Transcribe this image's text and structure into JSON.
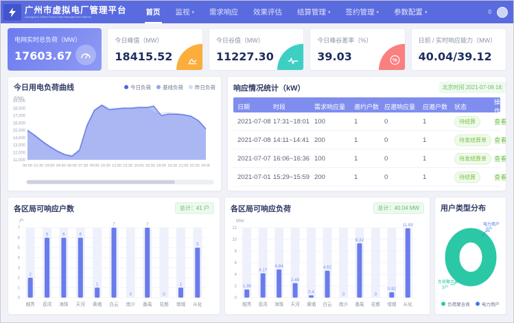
{
  "header": {
    "logo_title": "广州市虚拟电厂管理平台",
    "logo_subtitle": "Guangzhou Virtual Power Plant Management Platform",
    "nav": [
      {
        "label": "首页",
        "active": true,
        "dropdown": false
      },
      {
        "label": "监视",
        "active": false,
        "dropdown": true
      },
      {
        "label": "需求响应",
        "active": false,
        "dropdown": false
      },
      {
        "label": "效果评估",
        "active": false,
        "dropdown": false
      },
      {
        "label": "结算管理",
        "active": false,
        "dropdown": true
      },
      {
        "label": "签约管理",
        "active": false,
        "dropdown": true
      },
      {
        "label": "参数配置",
        "active": false,
        "dropdown": true
      }
    ],
    "notification_count": "0"
  },
  "kpi_cards": [
    {
      "label": "电网实时总负荷（MW）",
      "value": "17603.67",
      "icon": "gauge-icon",
      "style": "gradient",
      "icon_color": ""
    },
    {
      "label": "今日峰值（MW）",
      "value": "18415.52",
      "icon": "curve-icon",
      "style": "plain",
      "icon_color": "#fbae3c"
    },
    {
      "label": "今日谷值（MW）",
      "value": "11227.30",
      "icon": "pulse-icon",
      "style": "plain",
      "icon_color": "#3dcfc4"
    },
    {
      "label": "今日峰谷差率（%）",
      "value": "39.03",
      "icon": "percent-icon",
      "style": "plain",
      "icon_color": "#fb7f7f"
    },
    {
      "label": "日前 / 实时响应能力（MW）",
      "value": "40.04/39.12",
      "icon": "",
      "style": "plain",
      "icon_color": ""
    }
  ],
  "load_chart": {
    "type": "area",
    "title": "今日用电负荷曲线",
    "y_unit": "(MW)",
    "ylim": [
      11000,
      19000
    ],
    "y_ticks": [
      "19,000",
      "18,000",
      "17,000",
      "16,000",
      "15,000",
      "14,000",
      "13,000",
      "12,000",
      "11,000"
    ],
    "x_labels": [
      "00:00",
      "01:30",
      "03:00",
      "04:30",
      "06:00",
      "07:30",
      "09:00",
      "10:30",
      "12:00",
      "13:30",
      "15:00",
      "16:30",
      "18:00",
      "19:30",
      "21:00",
      "22:30",
      "24:00"
    ],
    "legend": [
      {
        "label": "今日负荷",
        "color": "#4e63e0"
      },
      {
        "label": "基线负荷",
        "color": "#93a3f1"
      },
      {
        "label": "昨日负荷",
        "color": "#d2dbfa"
      }
    ],
    "series": [
      {
        "name": "昨日负荷",
        "values": [
          15100,
          14400,
          13600,
          12900,
          12250,
          11800,
          11600,
          12500,
          15900,
          17800,
          18500,
          18000,
          18000,
          18100,
          18100,
          18200,
          18200,
          17400,
          17300,
          17400,
          17300,
          17200,
          17000,
          16400,
          15300
        ]
      },
      {
        "name": "基线负荷",
        "values": [
          14900,
          14200,
          13400,
          12700,
          12100,
          11650,
          11450,
          12200,
          15500,
          17600,
          18300,
          17750,
          17850,
          17950,
          17950,
          18050,
          18050,
          18200,
          16950,
          17150,
          17150,
          17050,
          16850,
          16250,
          15150
        ]
      },
      {
        "name": "今日负荷",
        "values": [
          15000,
          14300,
          13500,
          12800,
          12200,
          11700,
          11500,
          12300,
          15600,
          17700,
          18400,
          17800,
          17900,
          18000,
          18000,
          18100,
          18100,
          18300,
          17000,
          17200,
          17200,
          17100,
          16900,
          16300,
          15200
        ]
      }
    ]
  },
  "response_table": {
    "title": "响应情况统计（kW）",
    "time_badge": "北京时间 2021-07-08 18:",
    "headers": [
      "日期",
      "时段",
      "需求响应量",
      "邀约户数",
      "应邀响应量",
      "应邀户数",
      "状态",
      "操作"
    ],
    "action_label": "查看",
    "rows": [
      {
        "date": "2021-07-08",
        "period": "17:31~18:01",
        "demand": "100",
        "invited": "1",
        "resp_amount": "0",
        "resp_users": "1",
        "status": "待结算"
      },
      {
        "date": "2021-07-08",
        "period": "14:11~14:41",
        "demand": "200",
        "invited": "1",
        "resp_amount": "0",
        "resp_users": "1",
        "status": "待发结算单"
      },
      {
        "date": "2021-07-07",
        "period": "16:06~16:36",
        "demand": "100",
        "invited": "1",
        "resp_amount": "0",
        "resp_users": "1",
        "status": "待发结算单"
      },
      {
        "date": "2021-07-01",
        "period": "15:29~15:59",
        "demand": "200",
        "invited": "1",
        "resp_amount": "0",
        "resp_users": "1",
        "status": "待结算"
      }
    ]
  },
  "district_users_chart": {
    "type": "bar",
    "title": "各区局可响应户数",
    "total_badge": "总计：41 户",
    "y_unit": "户",
    "ylim": [
      0,
      7
    ],
    "y_step": 1,
    "categories": [
      "越秀",
      "荔湾",
      "海珠",
      "天河",
      "黄埔",
      "白云",
      "南沙",
      "番禺",
      "花都",
      "增城",
      "从化"
    ],
    "values": [
      2,
      6,
      6,
      6,
      1,
      7,
      0,
      7,
      0,
      1,
      5
    ]
  },
  "district_load_chart": {
    "type": "bar",
    "title": "各区局可响应负荷",
    "total_badge": "总计：40.04 MW",
    "y_unit": "MW",
    "ylim": [
      0,
      12
    ],
    "y_step": 2,
    "categories": [
      "越秀",
      "荔湾",
      "海珠",
      "天河",
      "黄埔",
      "白云",
      "南沙",
      "番禺",
      "花都",
      "增城",
      "从化"
    ],
    "values": [
      1.39,
      4.17,
      4.84,
      2.49,
      0.4,
      4.62,
      0,
      9.32,
      0,
      0.92,
      11.89
    ]
  },
  "user_type_donut": {
    "type": "pie",
    "title": "用户类型分布",
    "slices": [
      {
        "label": "负荷聚合商",
        "value": 3,
        "unit": "户",
        "color": "#2bc8a6"
      },
      {
        "label": "电力用户",
        "value": 0,
        "unit": "户",
        "color": "#3a7bf0"
      }
    ]
  }
}
